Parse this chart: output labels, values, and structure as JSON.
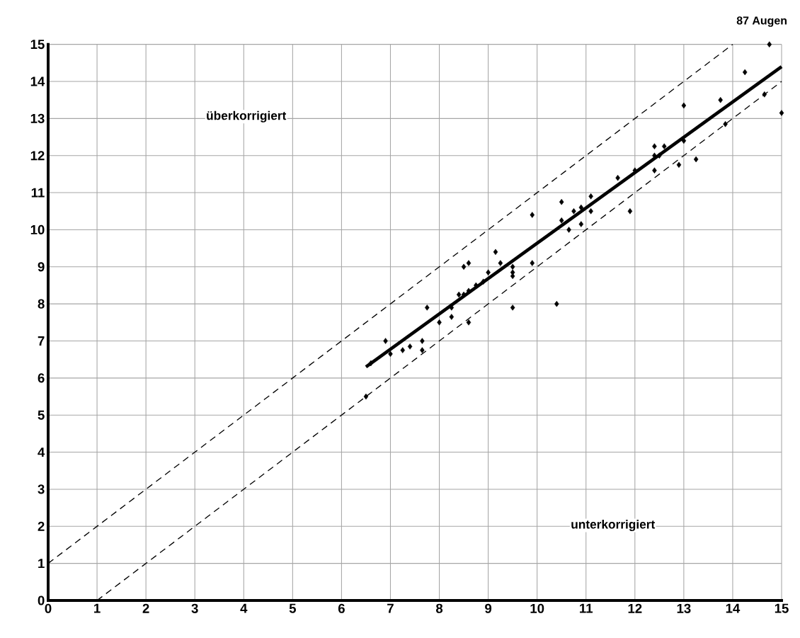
{
  "chart_data": {
    "type": "scatter",
    "annotations": [
      "87 Augen",
      "überkorrigiert",
      "unterkorrigiert"
    ],
    "xlim": [
      0,
      15
    ],
    "ylim": [
      0,
      15
    ],
    "xticks": [
      0,
      1,
      2,
      3,
      4,
      5,
      6,
      7,
      8,
      9,
      10,
      11,
      12,
      13,
      14,
      15
    ],
    "yticks": [
      0,
      1,
      2,
      3,
      4,
      5,
      6,
      7,
      8,
      9,
      10,
      11,
      12,
      13,
      14,
      15
    ],
    "grid": true,
    "series": [
      {
        "color": "#000000",
        "marker": "diamond",
        "x": [
          6.5,
          6.6,
          6.9,
          7.0,
          7.25,
          7.4,
          7.65,
          7.65,
          7.75,
          8.0,
          8.25,
          8.25,
          8.4,
          8.5,
          8.5,
          8.6,
          8.6,
          8.6,
          8.75,
          8.9,
          9.0,
          9.15,
          9.25,
          9.5,
          9.5,
          9.5,
          9.5,
          9.9,
          9.9,
          10.4,
          10.5,
          10.5,
          10.65,
          10.75,
          10.9,
          10.9,
          11.1,
          11.1,
          11.65,
          11.9,
          12.0,
          12.4,
          12.4,
          12.4,
          12.5,
          12.6,
          12.9,
          13.0,
          13.0,
          13.25,
          13.75,
          13.85,
          14.25,
          14.65,
          14.75,
          15.0
        ],
        "values": [
          5.5,
          6.4,
          7.0,
          6.65,
          6.75,
          6.85,
          7.0,
          6.75,
          7.9,
          7.5,
          7.65,
          7.9,
          8.25,
          9.0,
          8.25,
          9.1,
          7.5,
          8.35,
          8.5,
          8.6,
          8.85,
          9.4,
          9.1,
          9.0,
          8.85,
          8.75,
          7.9,
          10.4,
          9.1,
          8.0,
          10.75,
          10.25,
          10.0,
          10.5,
          10.6,
          10.15,
          10.5,
          10.9,
          11.4,
          10.5,
          11.6,
          12.25,
          12.0,
          11.6,
          12.0,
          12.25,
          11.75,
          13.35,
          12.4,
          11.9,
          13.5,
          12.85,
          14.25,
          13.65,
          15.0,
          13.15
        ]
      },
      {
        "type": "line",
        "color": "#000000",
        "line_style": "solid",
        "marker": "none",
        "x": [
          6.5,
          15
        ],
        "values": [
          6.3,
          14.4
        ]
      },
      {
        "type": "line",
        "color": "#000000",
        "line_style": "dashed",
        "marker": "none",
        "x": [
          0,
          14
        ],
        "values": [
          1,
          15
        ]
      },
      {
        "type": "line",
        "color": "#000000",
        "line_style": "dashed",
        "marker": "none",
        "x": [
          1,
          15
        ],
        "values": [
          0,
          14
        ]
      }
    ]
  }
}
